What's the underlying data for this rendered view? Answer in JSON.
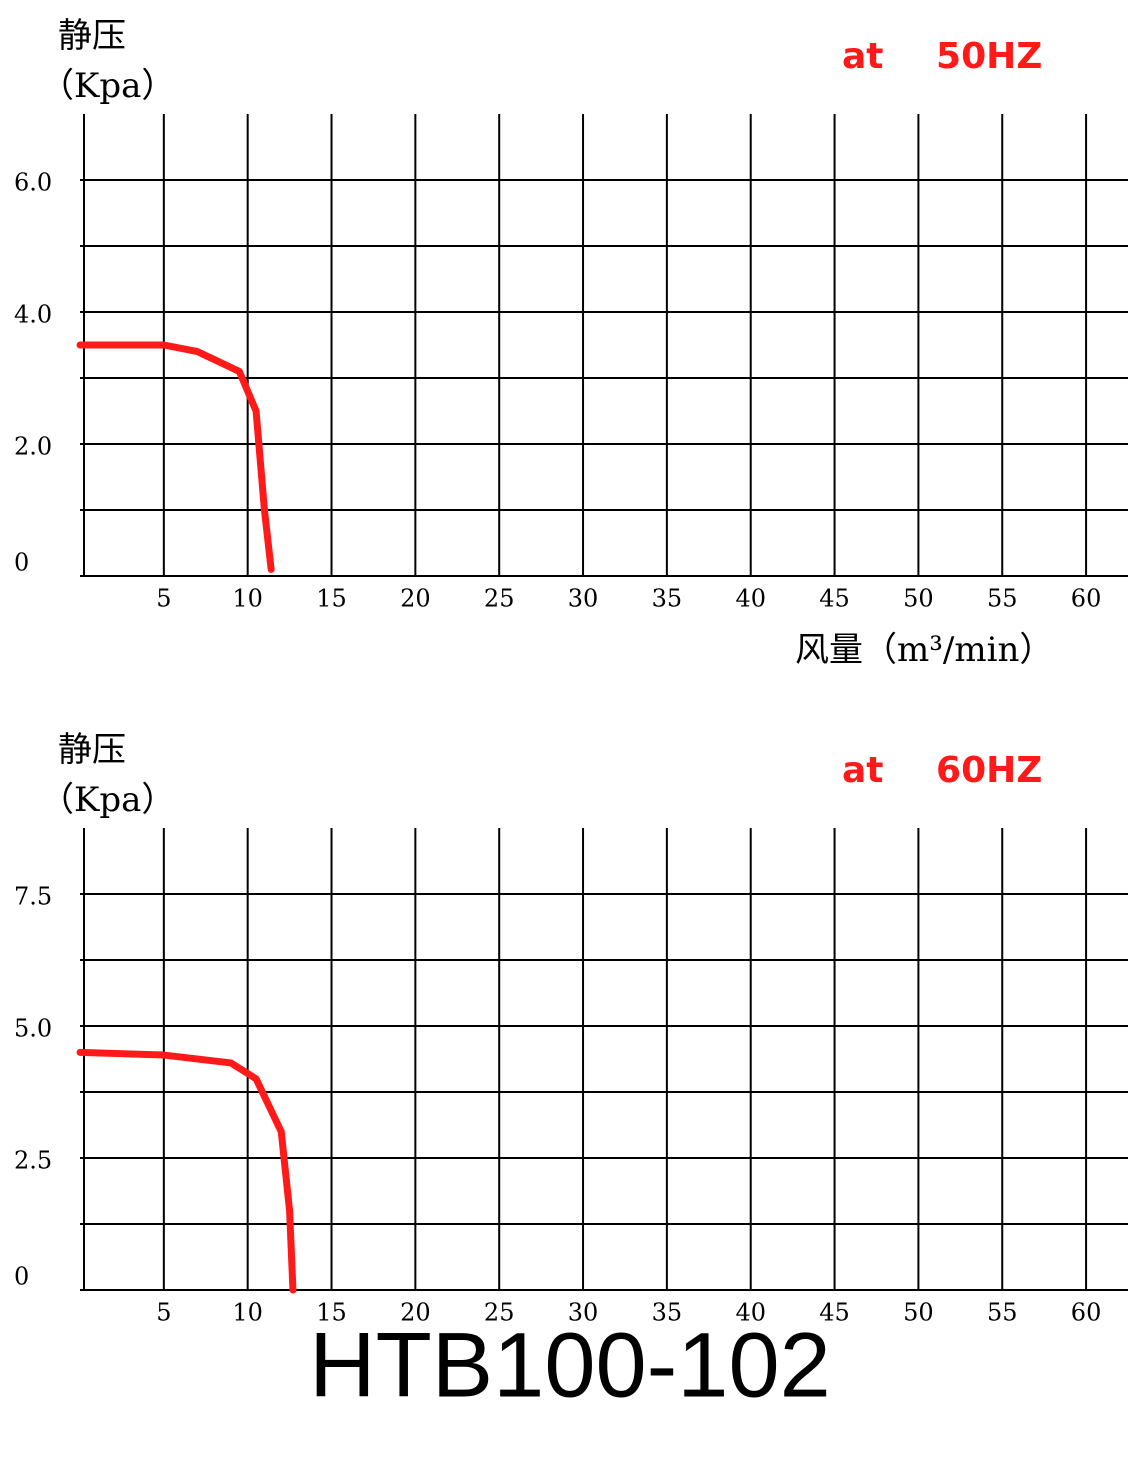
{
  "title": "HTB100-102",
  "chart_data": [
    {
      "type": "line",
      "ylabel_1": "静压",
      "ylabel_2": "（Kpa）",
      "annotation": "at 50HZ",
      "xlabel": "风量（m³/min）",
      "xlim": [
        0,
        62.5
      ],
      "xticks": [
        5,
        10,
        15,
        20,
        25,
        30,
        35,
        40,
        45,
        50,
        55,
        60
      ],
      "ylim": [
        0,
        7
      ],
      "yticks": [
        0,
        {
          "value": 1,
          "label": null
        },
        {
          "value": 2,
          "label": "2.0"
        },
        {
          "value": 3,
          "label": null
        },
        {
          "value": 4,
          "label": "4.0"
        },
        {
          "value": 5,
          "label": null
        },
        {
          "value": 6,
          "label": "6.0"
        }
      ],
      "grid": true,
      "series": [
        {
          "color": "#ff1a1a",
          "x": [
            0,
            5,
            7,
            9.5,
            10.5,
            11,
            11.4
          ],
          "values": [
            3.5,
            3.5,
            3.4,
            3.1,
            2.5,
            1.0,
            0.1
          ]
        }
      ]
    },
    {
      "type": "line",
      "ylabel_1": "静压",
      "ylabel_2": "（Kpa）",
      "annotation": "at 60HZ",
      "xlim": [
        0,
        62.5
      ],
      "xticks": [
        5,
        10,
        15,
        20,
        25,
        30,
        35,
        40,
        45,
        50,
        55,
        60
      ],
      "ylim": [
        0,
        8.75
      ],
      "yticks": [
        0,
        {
          "value": 1.25,
          "label": null
        },
        2.5,
        {
          "value": 3.75,
          "label": null
        },
        {
          "value": 5,
          "label": "5.0"
        },
        {
          "value": 6.25,
          "label": null
        },
        7.5
      ],
      "grid": true,
      "series": [
        {
          "color": "#ff1a1a",
          "x": [
            0,
            5,
            9,
            10.5,
            12,
            12.5,
            12.7
          ],
          "values": [
            4.5,
            4.45,
            4.3,
            4.0,
            3.0,
            1.5,
            0
          ]
        }
      ]
    }
  ]
}
